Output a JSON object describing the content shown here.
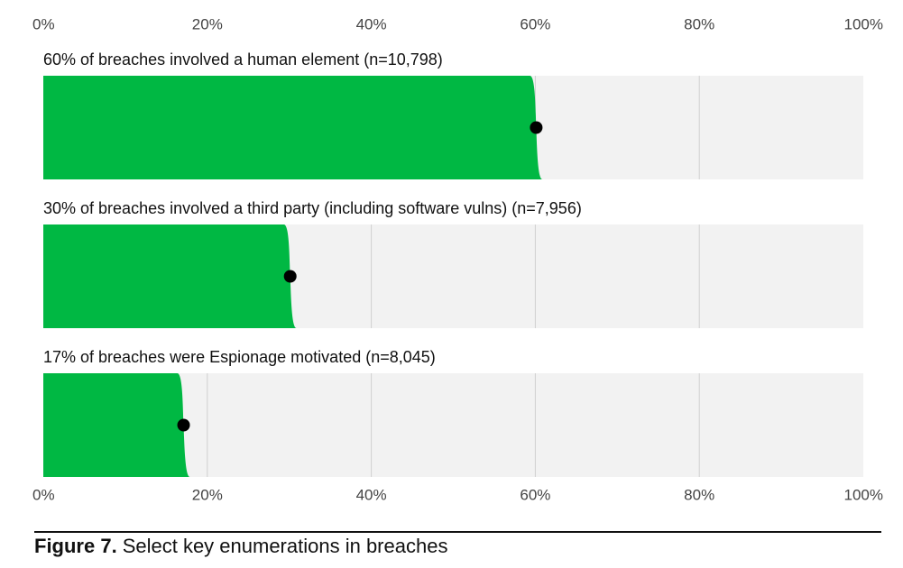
{
  "chart_data": {
    "type": "bar",
    "orientation": "horizontal",
    "categories": [
      "60% of breaches involved a human element (n=10,798)",
      "30% of breaches involved a third party (including software vulns) (n=7,956)",
      "17% of breaches were Espionage motivated (n=8,045)"
    ],
    "values": [
      60,
      30,
      17
    ],
    "color": "#00b843",
    "background": "#f2f2f2",
    "point_color": "#000000",
    "xlim": [
      0,
      100
    ],
    "xticks": [
      {
        "value": 0,
        "label": "0%"
      },
      {
        "value": 20,
        "label": "20%"
      },
      {
        "value": 40,
        "label": "40%"
      },
      {
        "value": 60,
        "label": "60%"
      },
      {
        "value": 80,
        "label": "80%"
      },
      {
        "value": 100,
        "label": "100%"
      }
    ],
    "grid": true,
    "figure_label": "Figure 7.",
    "title": "Select key enumerations in breaches"
  }
}
